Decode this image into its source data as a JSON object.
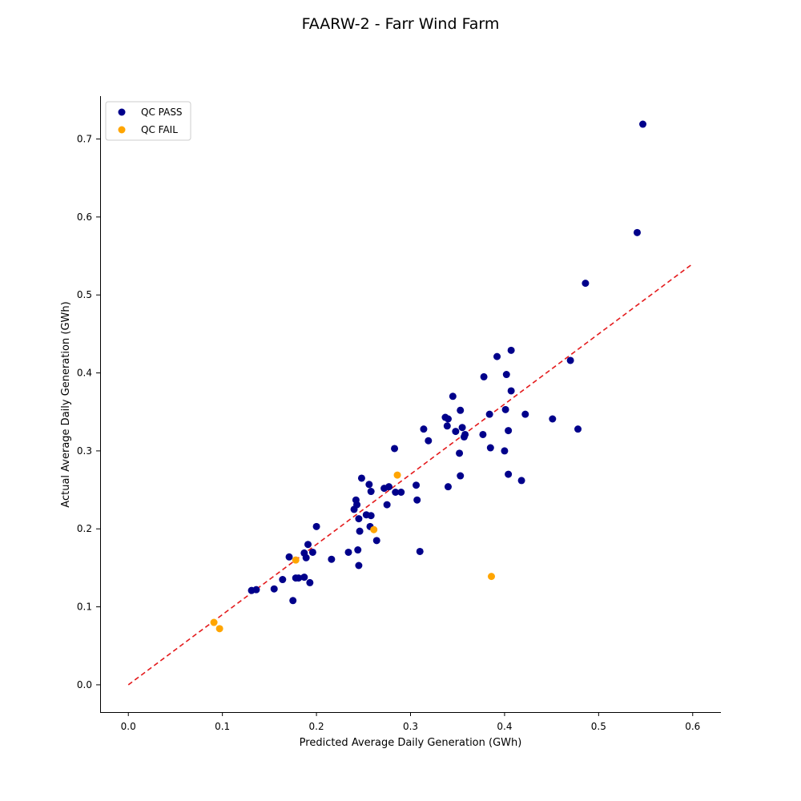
{
  "chart_data": {
    "type": "scatter",
    "title": "FAARW-2 - Farr Wind Farm",
    "xlabel": "Predicted Average Daily Generation (GWh)",
    "ylabel": "Actual Average Daily Generation (GWh)",
    "xlim": [
      -0.03,
      0.63
    ],
    "ylim": [
      -0.035,
      0.755
    ],
    "xticks": [
      "0.0",
      "0.1",
      "0.2",
      "0.3",
      "0.4",
      "0.5",
      "0.6"
    ],
    "yticks": [
      "0.0",
      "0.1",
      "0.2",
      "0.3",
      "0.4",
      "0.5",
      "0.6",
      "0.7"
    ],
    "grid": false,
    "legend_position": "top-left",
    "reference_line": {
      "style": "dashed",
      "color": "#e41a1c",
      "from": [
        0.0,
        0.0
      ],
      "to": [
        0.6,
        0.54
      ]
    },
    "series": [
      {
        "name": "QC PASS",
        "color": "#00008b",
        "points": [
          [
            0.131,
            0.121
          ],
          [
            0.136,
            0.122
          ],
          [
            0.155,
            0.123
          ],
          [
            0.164,
            0.135
          ],
          [
            0.171,
            0.164
          ],
          [
            0.175,
            0.108
          ],
          [
            0.178,
            0.137
          ],
          [
            0.181,
            0.137
          ],
          [
            0.187,
            0.138
          ],
          [
            0.187,
            0.169
          ],
          [
            0.189,
            0.163
          ],
          [
            0.191,
            0.18
          ],
          [
            0.193,
            0.131
          ],
          [
            0.196,
            0.17
          ],
          [
            0.2,
            0.203
          ],
          [
            0.216,
            0.161
          ],
          [
            0.234,
            0.17
          ],
          [
            0.24,
            0.225
          ],
          [
            0.242,
            0.237
          ],
          [
            0.243,
            0.231
          ],
          [
            0.244,
            0.173
          ],
          [
            0.245,
            0.153
          ],
          [
            0.245,
            0.213
          ],
          [
            0.246,
            0.197
          ],
          [
            0.248,
            0.265
          ],
          [
            0.253,
            0.218
          ],
          [
            0.256,
            0.257
          ],
          [
            0.257,
            0.203
          ],
          [
            0.258,
            0.217
          ],
          [
            0.258,
            0.248
          ],
          [
            0.264,
            0.185
          ],
          [
            0.272,
            0.252
          ],
          [
            0.275,
            0.231
          ],
          [
            0.277,
            0.254
          ],
          [
            0.283,
            0.303
          ],
          [
            0.284,
            0.247
          ],
          [
            0.29,
            0.247
          ],
          [
            0.306,
            0.256
          ],
          [
            0.307,
            0.237
          ],
          [
            0.31,
            0.171
          ],
          [
            0.314,
            0.328
          ],
          [
            0.319,
            0.313
          ],
          [
            0.337,
            0.343
          ],
          [
            0.339,
            0.332
          ],
          [
            0.34,
            0.341
          ],
          [
            0.34,
            0.254
          ],
          [
            0.345,
            0.37
          ],
          [
            0.348,
            0.325
          ],
          [
            0.352,
            0.297
          ],
          [
            0.353,
            0.268
          ],
          [
            0.353,
            0.352
          ],
          [
            0.355,
            0.33
          ],
          [
            0.357,
            0.318
          ],
          [
            0.358,
            0.321
          ],
          [
            0.377,
            0.321
          ],
          [
            0.378,
            0.395
          ],
          [
            0.384,
            0.347
          ],
          [
            0.385,
            0.304
          ],
          [
            0.392,
            0.421
          ],
          [
            0.4,
            0.3
          ],
          [
            0.401,
            0.353
          ],
          [
            0.402,
            0.398
          ],
          [
            0.404,
            0.27
          ],
          [
            0.404,
            0.326
          ],
          [
            0.407,
            0.377
          ],
          [
            0.407,
            0.429
          ],
          [
            0.418,
            0.262
          ],
          [
            0.422,
            0.347
          ],
          [
            0.451,
            0.341
          ],
          [
            0.47,
            0.416
          ],
          [
            0.478,
            0.328
          ],
          [
            0.486,
            0.515
          ],
          [
            0.541,
            0.58
          ],
          [
            0.547,
            0.719
          ]
        ]
      },
      {
        "name": "QC FAIL",
        "color": "#ffa500",
        "points": [
          [
            0.091,
            0.08
          ],
          [
            0.097,
            0.072
          ],
          [
            0.178,
            0.16
          ],
          [
            0.261,
            0.199
          ],
          [
            0.286,
            0.269
          ],
          [
            0.386,
            0.139
          ]
        ]
      }
    ]
  }
}
